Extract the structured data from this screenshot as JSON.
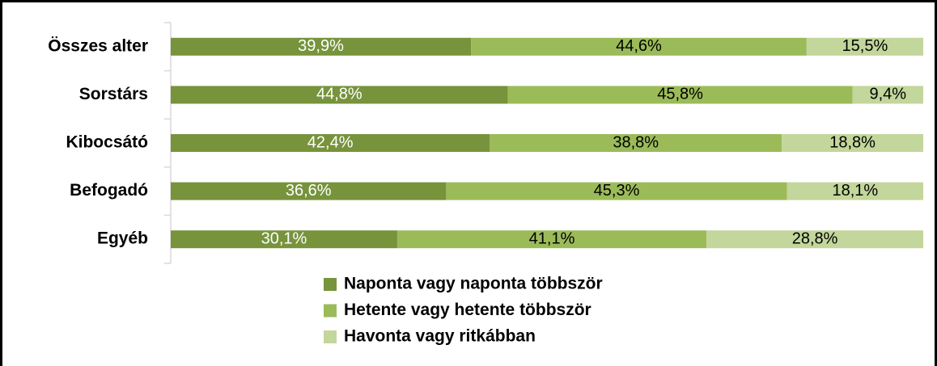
{
  "chart_data": {
    "type": "stacked-bar-horizontal",
    "categories": [
      "Összes alter",
      "Sorstárs",
      "Kibocsátó",
      "Befogadó",
      "Egyéb"
    ],
    "series": [
      {
        "name": "Naponta vagy naponta többször",
        "color": "#77933c",
        "label_color": "#ffffff",
        "values": [
          39.9,
          44.8,
          42.4,
          36.6,
          30.1
        ],
        "value_labels": [
          "39,9%",
          "44,8%",
          "42,4%",
          "36,6%",
          "30,1%"
        ]
      },
      {
        "name": "Hetente vagy hetente többször",
        "color": "#9bbb59",
        "label_color": "#000000",
        "values": [
          44.6,
          45.8,
          38.8,
          45.3,
          41.1
        ],
        "value_labels": [
          "44,6%",
          "45,8%",
          "38,8%",
          "45,3%",
          "41,1%"
        ]
      },
      {
        "name": "Havonta vagy ritkábban",
        "color": "#c3d69b",
        "label_color": "#000000",
        "values": [
          15.5,
          9.4,
          18.8,
          18.1,
          28.8
        ],
        "value_labels": [
          "15,5%",
          "9,4%",
          "18,8%",
          "18,1%",
          "28,8%"
        ]
      }
    ],
    "legend": "bottom"
  }
}
